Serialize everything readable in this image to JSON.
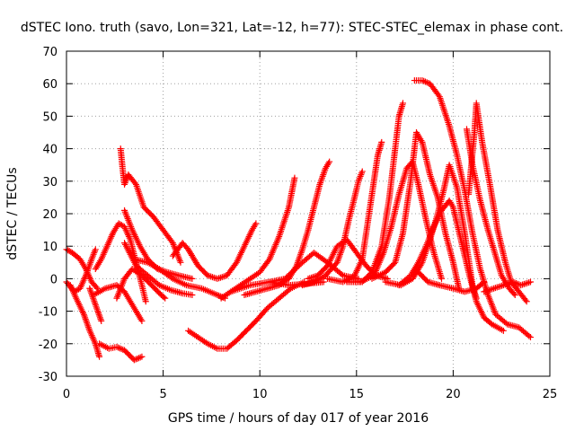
{
  "chart_data": {
    "type": "scatter",
    "title": "dSTEC Iono. truth (savo, Lon=321, Lat=-12, h=77): STEC-STEC_elemax in phase cont.",
    "xlabel": "GPS time / hours of day 017 of year 2016",
    "ylabel": "dSTEC  / TECUs",
    "xlim": [
      0,
      25
    ],
    "ylim": [
      -30,
      70
    ],
    "xticks": [
      "0",
      "5",
      "10",
      "15",
      "20",
      "25"
    ],
    "yticks": [
      "-30",
      "-20",
      "-10",
      "0",
      "10",
      "20",
      "30",
      "40",
      "50",
      "60",
      "70"
    ],
    "grid": true,
    "marker": "plus",
    "color": "#ff0000",
    "series": [
      {
        "values": [
          [
            0.0,
            9
          ],
          [
            0.3,
            8
          ],
          [
            0.7,
            6
          ],
          [
            1.0,
            3
          ],
          [
            1.3,
            -1
          ],
          [
            1.6,
            -3
          ]
        ]
      },
      {
        "values": [
          [
            0.2,
            -2
          ],
          [
            0.5,
            -6
          ],
          [
            0.9,
            -11
          ],
          [
            1.2,
            -16
          ],
          [
            1.5,
            -20
          ],
          [
            1.7,
            -24
          ]
        ]
      },
      {
        "values": [
          [
            0.0,
            -1
          ],
          [
            0.4,
            -4
          ],
          [
            0.7,
            -3
          ],
          [
            1.0,
            1
          ],
          [
            1.3,
            6
          ],
          [
            1.5,
            9
          ]
        ]
      },
      {
        "values": [
          [
            1.2,
            -3
          ],
          [
            1.5,
            -8
          ],
          [
            1.8,
            -13
          ]
        ]
      },
      {
        "values": [
          [
            1.7,
            -20
          ],
          [
            2.2,
            -21.5
          ],
          [
            2.6,
            -21
          ],
          [
            3.0,
            -22
          ],
          [
            3.5,
            -25
          ],
          [
            3.9,
            -24
          ]
        ]
      },
      {
        "values": [
          [
            1.5,
            3
          ],
          [
            1.8,
            6
          ],
          [
            2.1,
            10
          ],
          [
            2.4,
            14
          ],
          [
            2.7,
            17
          ],
          [
            3.0,
            16
          ],
          [
            3.3,
            12
          ],
          [
            3.6,
            5
          ],
          [
            3.9,
            -2
          ],
          [
            4.1,
            -7
          ]
        ]
      },
      {
        "values": [
          [
            1.4,
            -5
          ],
          [
            2.0,
            -3
          ],
          [
            2.6,
            -2
          ],
          [
            3.0,
            -4
          ],
          [
            3.4,
            -8
          ],
          [
            3.8,
            -12
          ],
          [
            3.9,
            -13
          ]
        ]
      },
      {
        "values": [
          [
            2.6,
            -6
          ],
          [
            3.0,
            0
          ],
          [
            3.4,
            3
          ],
          [
            3.9,
            1
          ],
          [
            4.4,
            -2
          ],
          [
            4.9,
            -5
          ],
          [
            5.1,
            -6
          ]
        ]
      },
      {
        "values": [
          [
            2.8,
            40
          ],
          [
            2.9,
            34
          ],
          [
            3.0,
            29
          ],
          [
            3.2,
            32
          ],
          [
            3.6,
            29
          ],
          [
            4.0,
            22
          ],
          [
            4.5,
            19
          ],
          [
            5.0,
            15
          ],
          [
            5.5,
            11
          ],
          [
            5.9,
            5
          ]
        ]
      },
      {
        "values": [
          [
            3.0,
            21
          ],
          [
            3.4,
            15
          ],
          [
            3.8,
            10
          ],
          [
            4.2,
            6
          ],
          [
            4.7,
            3
          ],
          [
            5.2,
            2
          ],
          [
            5.8,
            1
          ],
          [
            6.5,
            0
          ]
        ]
      },
      {
        "values": [
          [
            3.0,
            11
          ],
          [
            3.6,
            4
          ],
          [
            4.2,
            1
          ],
          [
            4.8,
            -2
          ],
          [
            5.4,
            -3.5
          ],
          [
            6.0,
            -4.5
          ],
          [
            6.5,
            -5
          ]
        ]
      },
      {
        "values": [
          [
            3.5,
            6
          ],
          [
            4.2,
            5
          ],
          [
            4.8,
            3
          ],
          [
            5.5,
            0
          ],
          [
            6.2,
            -2
          ],
          [
            7.0,
            -3
          ],
          [
            7.8,
            -5
          ],
          [
            8.2,
            -6
          ]
        ]
      },
      {
        "values": [
          [
            5.5,
            7
          ],
          [
            6.0,
            11
          ],
          [
            6.3,
            9
          ],
          [
            6.8,
            4
          ],
          [
            7.3,
            1
          ],
          [
            7.8,
            0
          ],
          [
            8.3,
            1
          ],
          [
            8.8,
            5
          ],
          [
            9.2,
            10
          ],
          [
            9.6,
            15
          ],
          [
            9.8,
            17
          ]
        ]
      },
      {
        "values": [
          [
            6.3,
            -16
          ],
          [
            6.8,
            -18
          ],
          [
            7.3,
            -20
          ],
          [
            7.8,
            -21.5
          ],
          [
            8.3,
            -21.5
          ],
          [
            8.8,
            -19
          ],
          [
            9.3,
            -16
          ],
          [
            9.8,
            -13
          ],
          [
            10.4,
            -9
          ],
          [
            11.0,
            -6
          ],
          [
            11.6,
            -3
          ],
          [
            12.3,
            -1
          ]
        ]
      },
      {
        "values": [
          [
            9.2,
            -5
          ],
          [
            9.8,
            -4
          ],
          [
            10.4,
            -3
          ],
          [
            11.0,
            -2
          ],
          [
            11.5,
            0
          ],
          [
            11.9,
            4
          ],
          [
            12.2,
            9
          ],
          [
            12.5,
            15
          ],
          [
            12.8,
            22
          ],
          [
            13.1,
            29
          ],
          [
            13.4,
            34
          ],
          [
            13.6,
            36
          ]
        ]
      },
      {
        "values": [
          [
            8.0,
            -6
          ],
          [
            8.5,
            -4
          ],
          [
            9.0,
            -2
          ],
          [
            9.5,
            0
          ],
          [
            10.0,
            2
          ],
          [
            10.5,
            6
          ],
          [
            11.0,
            13
          ],
          [
            11.5,
            22
          ],
          [
            11.8,
            31
          ]
        ]
      },
      {
        "values": [
          [
            8.5,
            -4
          ],
          [
            9.5,
            -2
          ],
          [
            10.5,
            -1
          ],
          [
            11.5,
            -2
          ],
          [
            12.5,
            -1.5
          ],
          [
            13.3,
            -1
          ]
        ]
      },
      {
        "values": [
          [
            10.5,
            -1
          ],
          [
            11.3,
            0
          ],
          [
            12.2,
            5
          ],
          [
            12.8,
            8
          ],
          [
            13.5,
            5
          ],
          [
            14.3,
            1
          ],
          [
            15.1,
            0
          ]
        ]
      },
      {
        "values": [
          [
            12.2,
            -2
          ],
          [
            12.8,
            -1
          ],
          [
            13.4,
            1
          ],
          [
            14.0,
            5
          ],
          [
            14.3,
            10
          ],
          [
            14.6,
            18
          ],
          [
            14.9,
            25
          ],
          [
            15.1,
            30
          ],
          [
            15.3,
            33
          ]
        ]
      },
      {
        "values": [
          [
            12.5,
            0
          ],
          [
            13.0,
            1
          ],
          [
            13.5,
            4
          ],
          [
            14.0,
            10
          ],
          [
            14.5,
            12
          ],
          [
            15.0,
            8
          ],
          [
            15.5,
            4
          ],
          [
            16.0,
            1
          ],
          [
            16.6,
            0
          ]
        ]
      },
      {
        "values": [
          [
            13.5,
            0
          ],
          [
            14.3,
            -1
          ],
          [
            14.9,
            1
          ],
          [
            15.3,
            6
          ],
          [
            15.6,
            18
          ],
          [
            15.9,
            30
          ],
          [
            16.1,
            38
          ],
          [
            16.3,
            42
          ]
        ]
      },
      {
        "values": [
          [
            14.5,
            -1
          ],
          [
            15.3,
            -1
          ],
          [
            15.8,
            2
          ],
          [
            16.3,
            10
          ],
          [
            16.7,
            25
          ],
          [
            17.0,
            40
          ],
          [
            17.2,
            50
          ],
          [
            17.4,
            54
          ]
        ]
      },
      {
        "values": [
          [
            15.2,
            -1
          ],
          [
            15.9,
            1
          ],
          [
            16.4,
            8
          ],
          [
            16.8,
            16
          ],
          [
            17.2,
            26
          ],
          [
            17.6,
            34
          ],
          [
            17.9,
            36
          ],
          [
            18.2,
            29
          ],
          [
            18.6,
            18
          ],
          [
            19.0,
            8
          ],
          [
            19.4,
            0
          ]
        ]
      },
      {
        "values": [
          [
            15.8,
            0
          ],
          [
            16.5,
            2
          ],
          [
            17.0,
            5
          ],
          [
            17.4,
            14
          ],
          [
            17.8,
            30
          ],
          [
            18.1,
            45
          ],
          [
            18.4,
            42
          ],
          [
            18.8,
            32
          ],
          [
            19.2,
            25
          ],
          [
            19.6,
            14
          ],
          [
            20.0,
            5
          ],
          [
            20.3,
            -3
          ]
        ]
      },
      {
        "values": [
          [
            16.5,
            -1
          ],
          [
            17.3,
            -2
          ],
          [
            17.9,
            0
          ],
          [
            18.4,
            5
          ],
          [
            18.8,
            12
          ],
          [
            19.2,
            20
          ],
          [
            19.5,
            27
          ],
          [
            19.8,
            35
          ],
          [
            20.2,
            28
          ],
          [
            20.6,
            14
          ],
          [
            21.0,
            -2
          ],
          [
            21.2,
            -6
          ]
        ]
      },
      {
        "values": [
          [
            18.0,
            61
          ],
          [
            18.4,
            61
          ],
          [
            18.8,
            60
          ],
          [
            19.3,
            56
          ],
          [
            19.8,
            47
          ],
          [
            20.2,
            38
          ],
          [
            20.6,
            27
          ],
          [
            21.0,
            14
          ],
          [
            21.4,
            3
          ],
          [
            21.8,
            -5
          ],
          [
            22.2,
            -11
          ],
          [
            22.8,
            -14
          ],
          [
            23.4,
            -15
          ],
          [
            24.0,
            -18
          ]
        ]
      },
      {
        "values": [
          [
            17.2,
            -2
          ],
          [
            17.8,
            1
          ],
          [
            18.2,
            5
          ],
          [
            18.6,
            10
          ],
          [
            19.0,
            16
          ],
          [
            19.4,
            21
          ],
          [
            19.8,
            24
          ],
          [
            20.0,
            22
          ],
          [
            20.4,
            12
          ],
          [
            20.8,
            2
          ],
          [
            21.2,
            -7
          ],
          [
            21.6,
            -12
          ],
          [
            22.0,
            -14
          ],
          [
            22.6,
            -16
          ]
        ]
      },
      {
        "values": [
          [
            18.2,
            2
          ],
          [
            18.7,
            -1
          ],
          [
            19.3,
            -2
          ],
          [
            20.0,
            -3
          ],
          [
            20.6,
            -4
          ],
          [
            21.2,
            -3
          ],
          [
            21.6,
            -1
          ]
        ]
      },
      {
        "values": [
          [
            20.8,
            26
          ],
          [
            21.1,
            45
          ],
          [
            21.2,
            54
          ],
          [
            21.5,
            42
          ],
          [
            21.9,
            29
          ],
          [
            22.3,
            15
          ],
          [
            22.7,
            5
          ],
          [
            23.0,
            -1
          ],
          [
            23.4,
            -4
          ],
          [
            23.8,
            -7
          ]
        ]
      },
      {
        "values": [
          [
            20.7,
            46
          ],
          [
            21.0,
            35
          ],
          [
            21.4,
            24
          ],
          [
            21.8,
            15
          ],
          [
            22.2,
            7
          ],
          [
            22.5,
            1
          ],
          [
            22.9,
            -3
          ],
          [
            23.2,
            -5
          ]
        ]
      },
      {
        "values": [
          [
            21.6,
            -4
          ],
          [
            22.1,
            -3
          ],
          [
            22.6,
            -2
          ],
          [
            23.1,
            -1
          ],
          [
            23.5,
            -2
          ],
          [
            24.0,
            -1
          ]
        ]
      }
    ]
  }
}
